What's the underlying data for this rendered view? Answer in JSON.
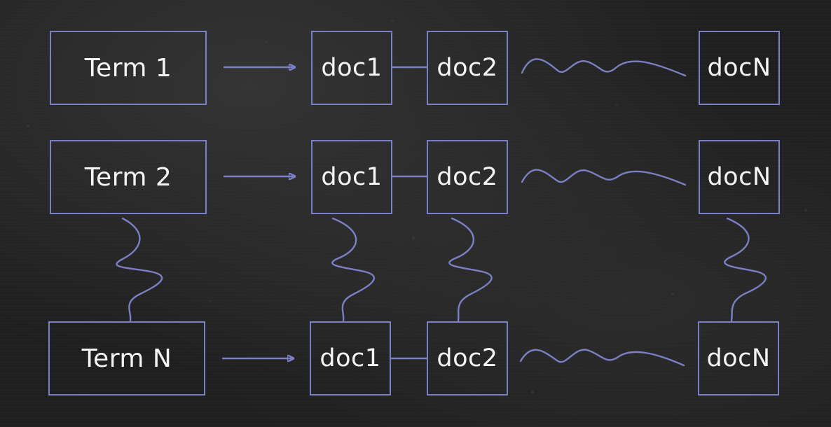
{
  "terms": [
    "Term 1",
    "Term 2",
    "Term N"
  ],
  "docs": [
    "doc1",
    "doc2",
    "docN"
  ],
  "colors": {
    "stroke": "#7b7fc4",
    "text": "#f4f4f4",
    "background": "#1e1e1e"
  }
}
